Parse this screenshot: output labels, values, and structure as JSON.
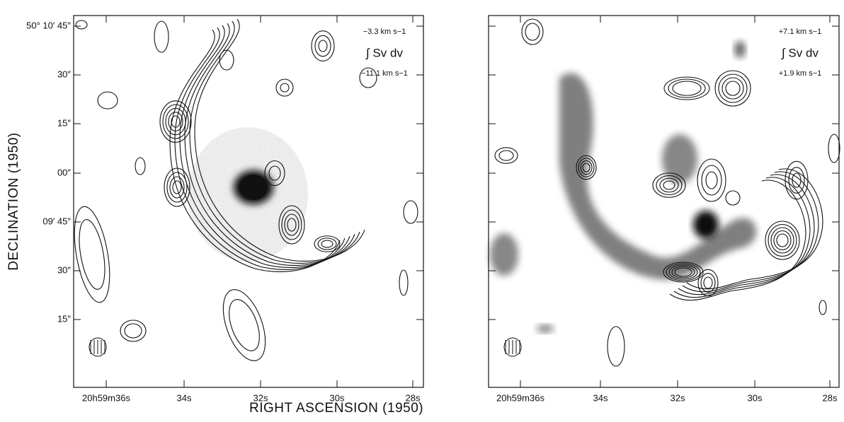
{
  "x_axis_label": "RIGHT ASCENSION  (1950)",
  "y_axis_label": "DECLINATION  (1950)",
  "y_tick_labels": [
    "50° 10′ 45″",
    "30″",
    "15″",
    "00″",
    "09′ 45″",
    "30″",
    "15″"
  ],
  "panels": [
    {
      "x_tick_labels": [
        "20h59m36s",
        "34s",
        "32s",
        "30s",
        "28s"
      ],
      "velocity_upper": "−3.3 km s−1",
      "integral": "∫ Sv dv",
      "velocity_lower": "−11.1 km s−1"
    },
    {
      "x_tick_labels": [
        "20h59m36s",
        "34s",
        "32s",
        "30s",
        "28s"
      ],
      "velocity_upper": "+7.1 km s−1",
      "integral": "∫ Sv dv",
      "velocity_lower": "+1.9 km s−1"
    }
  ]
}
